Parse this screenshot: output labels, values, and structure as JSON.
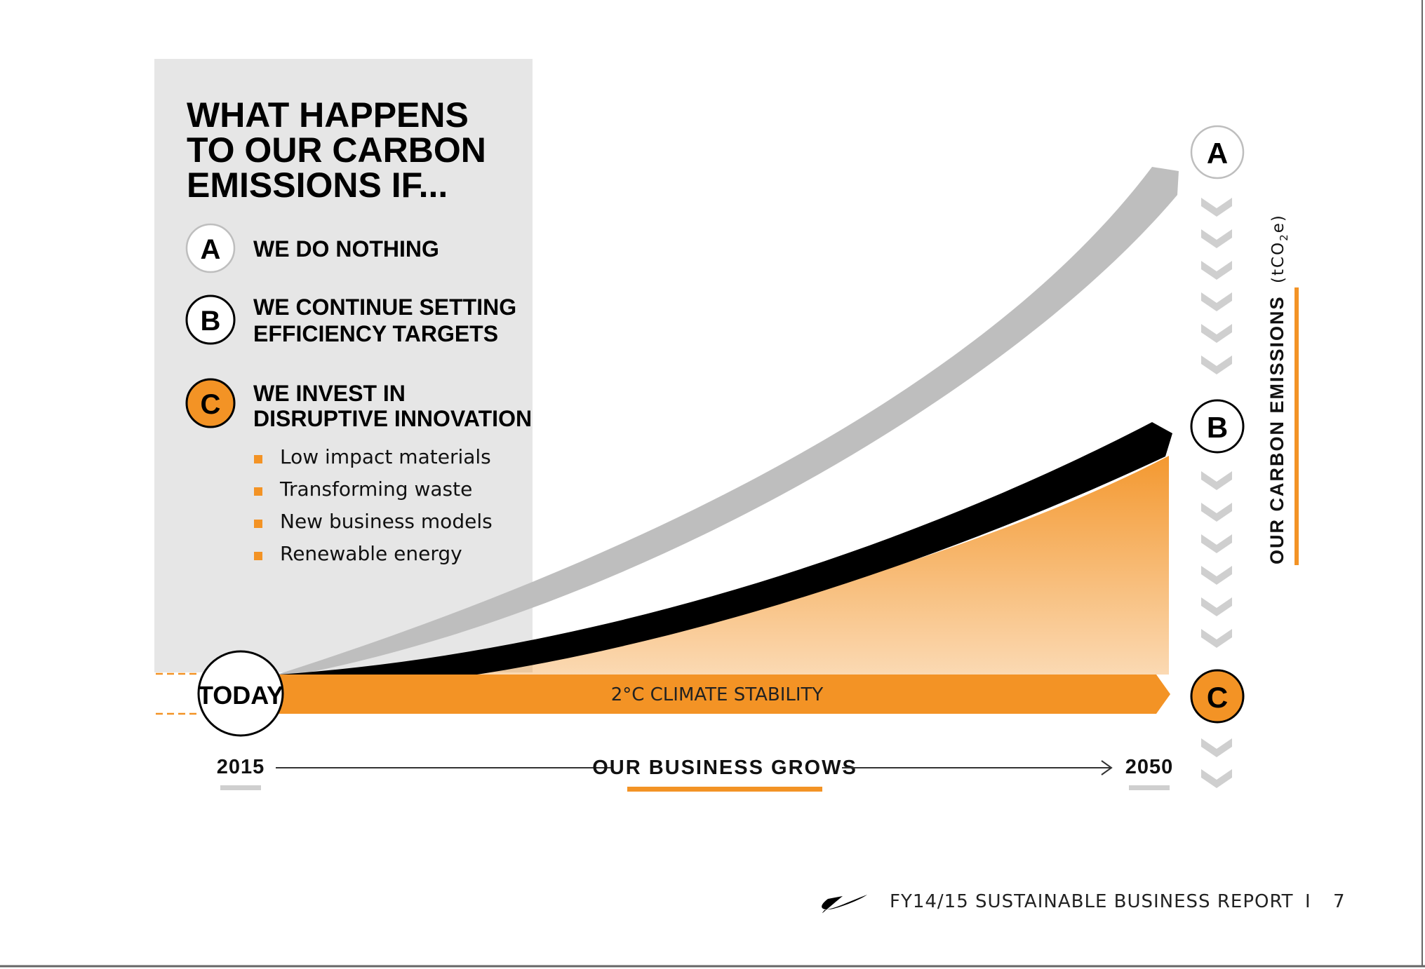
{
  "heading": {
    "line1": "WHAT HAPPENS",
    "line2": "TO OUR CARBON",
    "line3": "EMISSIONS IF..."
  },
  "scenarios": [
    {
      "letter": "A",
      "line1": "WE DO NOTHING",
      "line2": ""
    },
    {
      "letter": "B",
      "line1": "WE CONTINUE SETTING",
      "line2": "EFFICIENCY TARGETS"
    },
    {
      "letter": "C",
      "line1": "WE INVEST IN",
      "line2": "DISRUPTIVE INNOVATION"
    }
  ],
  "innovations": [
    "Low impact materials",
    "Transforming waste",
    "New business models",
    "Renewable energy"
  ],
  "today_label": "TODAY",
  "climate_band_label": "2°C CLIMATE STABILITY",
  "x_axis": {
    "start": "2015",
    "label": "OUR BUSINESS GROWS",
    "end": "2050"
  },
  "y_axis": {
    "label": "OUR CARBON EMISSIONS",
    "unit": "(tCO",
    "unit_sub": "2",
    "unit_end": "e)"
  },
  "markers": {
    "a": "A",
    "b": "B",
    "c": "C"
  },
  "footer": {
    "report": "FY14/15 SUSTAINABLE BUSINESS REPORT",
    "separator": "I",
    "page": "7"
  },
  "colors": {
    "orange": "#F39325",
    "black": "#000000",
    "grey_arrow": "#BEBEBE",
    "panel_grey": "#E6E6E6",
    "chevron_grey": "#CFCFCF"
  }
}
